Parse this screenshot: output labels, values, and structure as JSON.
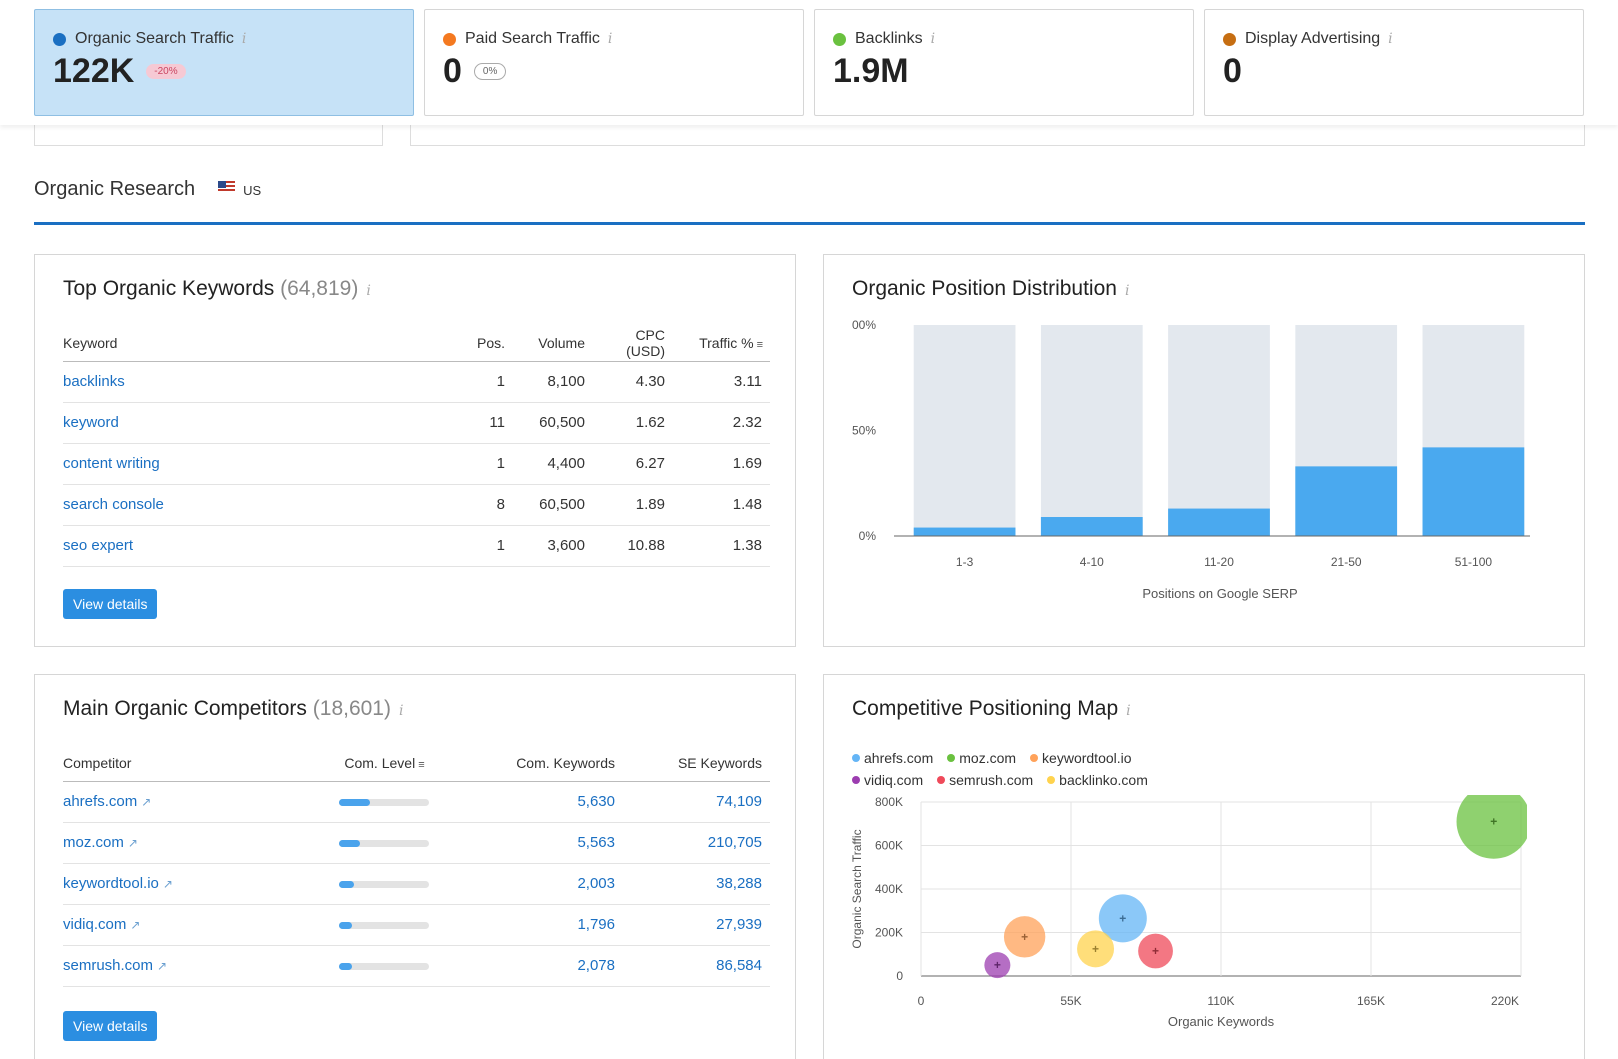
{
  "metrics": [
    {
      "label": "Organic Search Traffic",
      "value": "122K",
      "badge": "-20%",
      "color": "#1a6fc2"
    },
    {
      "label": "Paid Search Traffic",
      "value": "0",
      "badge": "0%",
      "color": "#f47920"
    },
    {
      "label": "Backlinks",
      "value": "1.9M",
      "color": "#6ac13f"
    },
    {
      "label": "Display Advertising",
      "value": "0",
      "color": "#c66e12"
    }
  ],
  "section": {
    "title": "Organic Research",
    "country": "US"
  },
  "keywords_panel": {
    "title": "Top Organic Keywords",
    "count": "(64,819)",
    "columns": [
      "Keyword",
      "Pos.",
      "Volume",
      "CPC (USD)",
      "Traffic %"
    ],
    "rows": [
      {
        "keyword": "backlinks",
        "pos": "1",
        "volume": "8,100",
        "cpc": "4.30",
        "traffic": "3.11"
      },
      {
        "keyword": "keyword",
        "pos": "11",
        "volume": "60,500",
        "cpc": "1.62",
        "traffic": "2.32"
      },
      {
        "keyword": "content writing",
        "pos": "1",
        "volume": "4,400",
        "cpc": "6.27",
        "traffic": "1.69"
      },
      {
        "keyword": "search console",
        "pos": "8",
        "volume": "60,500",
        "cpc": "1.89",
        "traffic": "1.48"
      },
      {
        "keyword": "seo expert",
        "pos": "1",
        "volume": "3,600",
        "cpc": "10.88",
        "traffic": "1.38"
      }
    ],
    "button": "View details"
  },
  "competitors_panel": {
    "title": "Main Organic Competitors",
    "count": "(18,601)",
    "columns": [
      "Competitor",
      "Com. Level",
      "Com. Keywords",
      "SE Keywords"
    ],
    "rows": [
      {
        "domain": "ahrefs.com",
        "level": 0.34,
        "com_keywords": "5,630",
        "se_keywords": "74,109"
      },
      {
        "domain": "moz.com",
        "level": 0.23,
        "com_keywords": "5,563",
        "se_keywords": "210,705"
      },
      {
        "domain": "keywordtool.io",
        "level": 0.17,
        "com_keywords": "2,003",
        "se_keywords": "38,288"
      },
      {
        "domain": "vidiq.com",
        "level": 0.14,
        "com_keywords": "1,796",
        "se_keywords": "27,939"
      },
      {
        "domain": "semrush.com",
        "level": 0.14,
        "com_keywords": "2,078",
        "se_keywords": "86,584"
      }
    ],
    "button": "View details"
  },
  "chart_data": [
    {
      "type": "bar",
      "title": "Organic Position Distribution",
      "categories": [
        "1-3",
        "4-10",
        "11-20",
        "21-50",
        "51-100"
      ],
      "values": [
        0.04,
        0.09,
        0.13,
        0.33,
        0.42
      ],
      "ytick_labels": [
        "0%",
        "50%",
        "00%"
      ],
      "ylim": [
        0,
        1
      ],
      "xlabel": "Positions on Google SERP",
      "bar_color": "#4aa9ef",
      "track_color": "#e3e8ee"
    },
    {
      "type": "scatter",
      "title": "Competitive Positioning Map",
      "xlabel": "Organic Keywords",
      "ylabel": "Organic Search Traffic",
      "xlim": [
        0,
        220000
      ],
      "ylim": [
        0,
        800000
      ],
      "xtick_labels": [
        "0",
        "55K",
        "110K",
        "165K",
        "220K"
      ],
      "ytick_labels": [
        "0",
        "200K",
        "400K",
        "600K",
        "800K"
      ],
      "series": [
        {
          "name": "ahrefs.com",
          "color": "#64b5f6",
          "x": 74000,
          "y": 265000,
          "size": 1.0
        },
        {
          "name": "moz.com",
          "color": "#6ac13f",
          "x": 210000,
          "y": 710000,
          "size": 1.6
        },
        {
          "name": "keywordtool.io",
          "color": "#ffa25a",
          "x": 38000,
          "y": 180000,
          "size": 0.85
        },
        {
          "name": "vidiq.com",
          "color": "#9c3db0",
          "x": 28000,
          "y": 50000,
          "size": 0.5
        },
        {
          "name": "semrush.com",
          "color": "#ef4a5a",
          "x": 86000,
          "y": 115000,
          "size": 0.7
        },
        {
          "name": "backlinko.com",
          "color": "#ffd34e",
          "x": 64000,
          "y": 125000,
          "size": 0.75
        }
      ]
    }
  ]
}
